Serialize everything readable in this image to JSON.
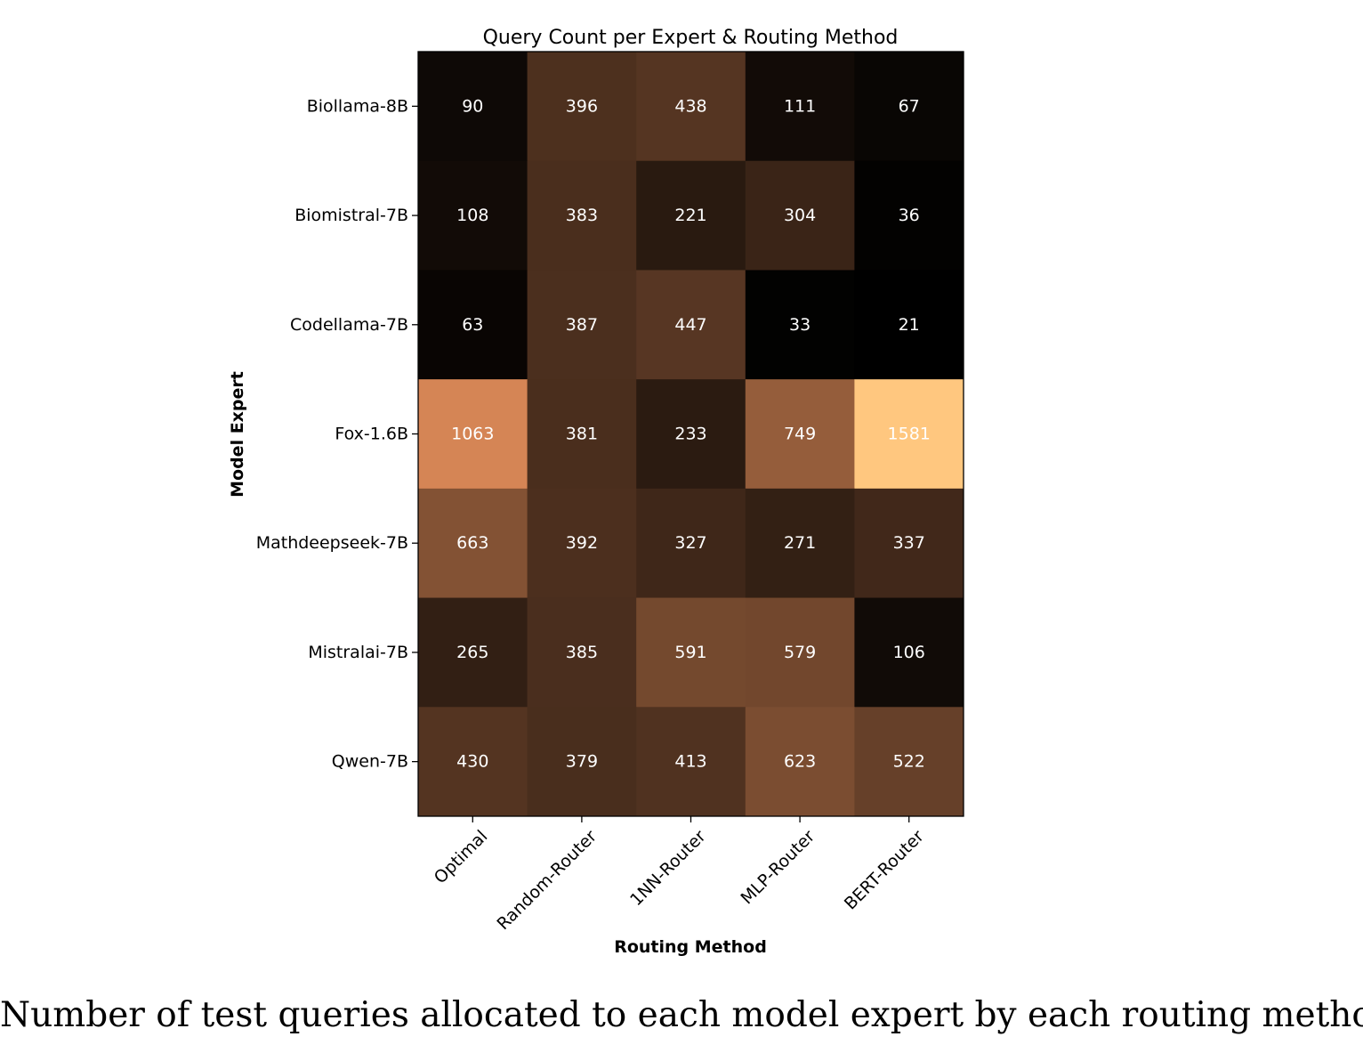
{
  "chart_data": {
    "type": "heatmap",
    "title": "Query Count per Expert & Routing Method",
    "xlabel": "Routing Method",
    "ylabel": "Model Expert",
    "x_categories": [
      "Optimal",
      "Random-Router",
      "1NN-Router",
      "MLP-Router",
      "BERT-Router"
    ],
    "y_categories": [
      "Biollama-8B",
      "Biomistral-7B",
      "Codellama-7B",
      "Fox-1.6B",
      "Mathdeepseek-7B",
      "Mistralai-7B",
      "Qwen-7B"
    ],
    "values": [
      [
        90,
        396,
        438,
        111,
        67
      ],
      [
        108,
        383,
        221,
        304,
        36
      ],
      [
        63,
        387,
        447,
        33,
        21
      ],
      [
        1063,
        381,
        233,
        749,
        1581
      ],
      [
        663,
        392,
        327,
        271,
        337
      ],
      [
        265,
        385,
        591,
        579,
        106
      ],
      [
        430,
        379,
        413,
        623,
        522
      ]
    ],
    "colormap": "copper",
    "vmin": 21,
    "vmax": 1581,
    "colorbar": false
  },
  "caption": "Number of test queries allocated to each model expert by each routing method."
}
